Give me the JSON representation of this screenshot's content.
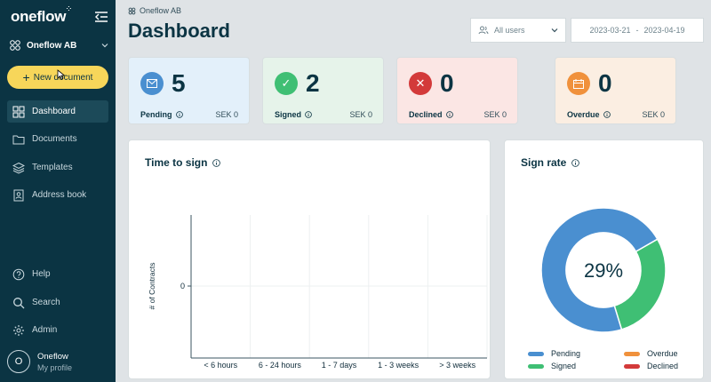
{
  "sidebar": {
    "logo": "oneflow",
    "workspace": "Oneflow AB",
    "new_document": "New document",
    "nav": [
      {
        "label": "Dashboard",
        "icon": "grid-icon",
        "active": true
      },
      {
        "label": "Documents",
        "icon": "folder-icon"
      },
      {
        "label": "Templates",
        "icon": "layers-icon"
      },
      {
        "label": "Address book",
        "icon": "contact-icon"
      }
    ],
    "bottom_nav": [
      {
        "label": "Help",
        "icon": "help-icon"
      },
      {
        "label": "Search",
        "icon": "search-icon"
      },
      {
        "label": "Admin",
        "icon": "gear-icon"
      }
    ],
    "profile": {
      "initial": "O",
      "name": "Oneflow",
      "link": "My profile"
    }
  },
  "header": {
    "breadcrumb": "Oneflow AB",
    "title": "Dashboard",
    "users_filter": "All users",
    "date_from": "2023-03-21",
    "date_sep": "-",
    "date_to": "2023-04-19"
  },
  "cards": [
    {
      "label": "Pending",
      "value": "5",
      "amount": "SEK 0",
      "color": "#4a8fd0",
      "bg": "#e3f0fa"
    },
    {
      "label": "Signed",
      "value": "2",
      "amount": "SEK 0",
      "color": "#3fbf74",
      "bg": "#e6f3ea"
    },
    {
      "label": "Declined",
      "value": "0",
      "amount": "SEK 0",
      "color": "#d33a3a",
      "bg": "#fbe6e4"
    },
    {
      "label": "Overdue",
      "value": "0",
      "amount": "SEK 0",
      "color": "#f0913c",
      "bg": "#fbeee2"
    }
  ],
  "time_to_sign": {
    "title": "Time to sign",
    "chart_data": {
      "type": "bar",
      "title": "Time to sign",
      "ylabel": "# of Contracts",
      "xlabel": "",
      "categories": [
        "< 6 hours",
        "6 - 24 hours",
        "1 - 7 days",
        "1 - 3 weeks",
        "> 3 weeks"
      ],
      "values": [
        0,
        0,
        0,
        0,
        0
      ],
      "yticks": [
        "0"
      ]
    }
  },
  "sign_rate": {
    "title": "Sign rate",
    "center_label": "29%",
    "chart_data": {
      "type": "pie",
      "title": "Sign rate",
      "labels": [
        "Pending",
        "Signed",
        "Overdue",
        "Declined"
      ],
      "values": [
        5,
        2,
        0,
        0
      ],
      "colors": [
        "#4a8fd0",
        "#3fbf74",
        "#f0913c",
        "#d33a3a"
      ]
    }
  }
}
